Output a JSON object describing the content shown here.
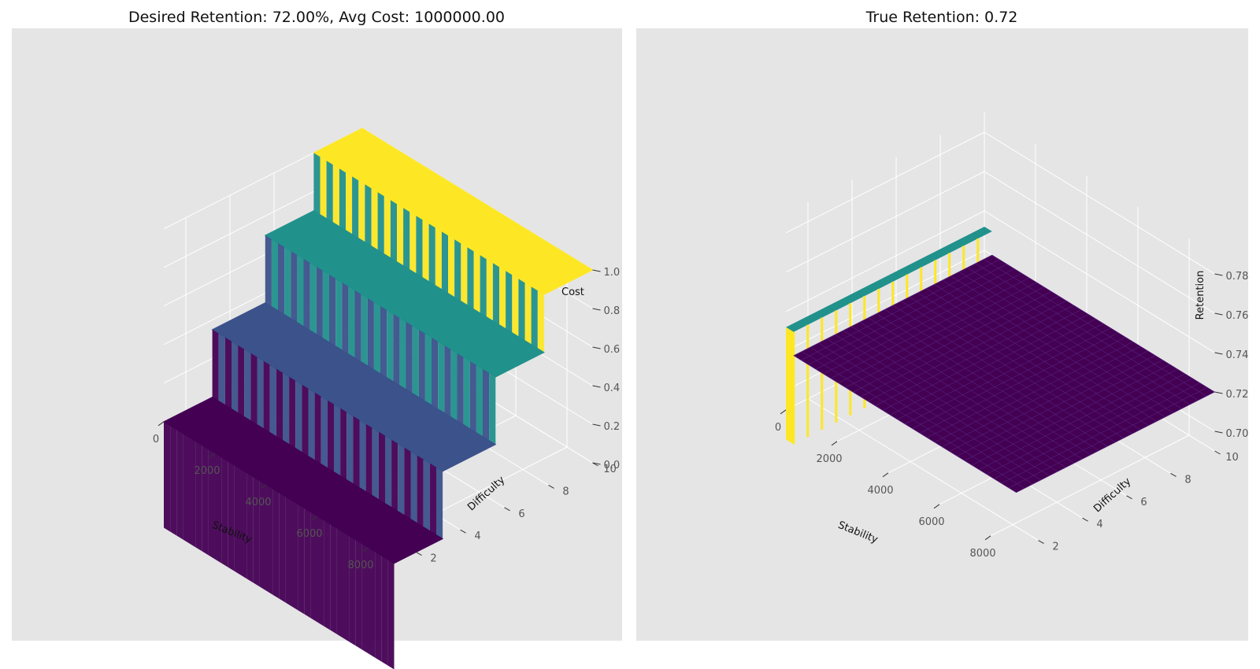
{
  "chart_data": [
    {
      "type": "surface3d",
      "title": "Desired Retention: 72.00%, Avg Cost: 1000000.00",
      "xlabel": "Stability",
      "ylabel": "Difficulty",
      "zlabel": "Cost",
      "x_ticks": [
        0,
        2000,
        4000,
        6000,
        8000
      ],
      "y_ticks": [
        2,
        4,
        6,
        8,
        10
      ],
      "z_ticks": [
        "0.0",
        "0.2",
        "0.4",
        "0.6",
        "0.8",
        "1.0"
      ],
      "xlim": [
        0,
        9000
      ],
      "ylim": [
        1,
        10
      ],
      "zlim": [
        0,
        1
      ],
      "colormap": "viridis",
      "surface_levels": [
        {
          "y_from": 1,
          "y_to": 3.2,
          "z": 0.0,
          "color": "#440154"
        },
        {
          "y_from": 3.2,
          "y_to": 5.6,
          "z": 0.35,
          "color": "#3b528b"
        },
        {
          "y_from": 5.6,
          "y_to": 7.8,
          "z": 0.7,
          "color": "#21918c"
        },
        {
          "y_from": 7.8,
          "y_to": 10,
          "z": 1.0,
          "color": "#fde725"
        }
      ]
    },
    {
      "type": "surface3d",
      "title": "True Retention: 0.72",
      "xlabel": "Stability",
      "ylabel": "Difficulty",
      "zlabel": "Retention",
      "x_ticks": [
        0,
        2000,
        4000,
        6000,
        8000
      ],
      "y_ticks": [
        2,
        4,
        6,
        8,
        10
      ],
      "z_ticks": [
        "0.70",
        "0.72",
        "0.74",
        "0.76",
        "0.78"
      ],
      "xlim": [
        0,
        9000
      ],
      "ylim": [
        1,
        10
      ],
      "zlim": [
        0.69,
        0.79
      ],
      "colormap": "viridis",
      "surface_value": 0.72,
      "surface_color": "#440154"
    }
  ]
}
